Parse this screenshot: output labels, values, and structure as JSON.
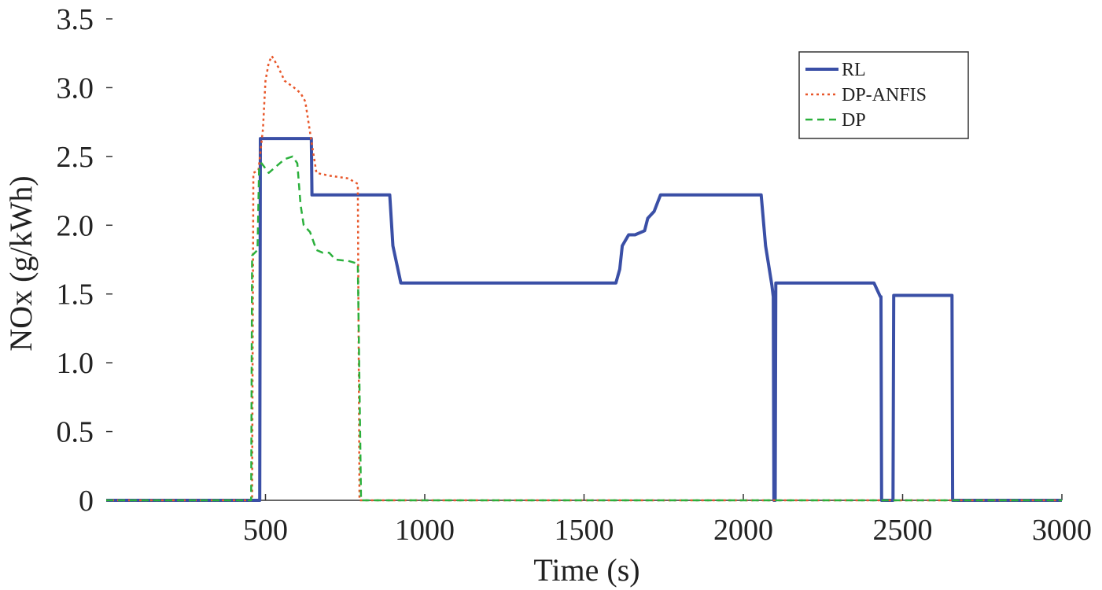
{
  "chart_data": {
    "type": "line",
    "title": "",
    "xlabel": "Time (s)",
    "ylabel": "NOx (g/kWh)",
    "xlim": [
      0,
      3000
    ],
    "ylim": [
      0,
      3.5
    ],
    "x_ticks": [
      500,
      1000,
      1500,
      2000,
      2500,
      3000
    ],
    "x_tick_labels": [
      "500",
      "1000",
      "1500",
      "2000",
      "2500",
      "3000"
    ],
    "y_ticks": [
      0,
      0.5,
      1.0,
      1.5,
      2.0,
      2.5,
      3.0,
      3.5
    ],
    "y_tick_labels": [
      "0",
      "0.5",
      "1.0",
      "1.5",
      "2.0",
      "2.5",
      "3.0",
      "3.5"
    ],
    "grid": false,
    "legend_position": "top-right",
    "series": [
      {
        "name": "RL",
        "color": "#3a4fa6",
        "style": "solid",
        "x": [
          0,
          482,
          484,
          644,
          646,
          890,
          900,
          925,
          1600,
          1612,
          1620,
          1640,
          1660,
          1690,
          1700,
          1720,
          1740,
          2056,
          2070,
          2090,
          2094,
          2096,
          2100,
          2102,
          2410,
          2430,
          2432,
          2434,
          2470,
          2472,
          2655,
          2657,
          3000
        ],
        "y": [
          0,
          0,
          2.63,
          2.63,
          2.22,
          2.22,
          1.85,
          1.58,
          1.58,
          1.68,
          1.85,
          1.93,
          1.93,
          1.96,
          2.05,
          2.1,
          2.22,
          2.22,
          1.85,
          1.56,
          1.48,
          0,
          0,
          1.58,
          1.58,
          1.48,
          1.48,
          0,
          0,
          1.49,
          1.49,
          0,
          0
        ]
      },
      {
        "name": "DP-ANFIS",
        "color": "#e8572a",
        "style": "dotted",
        "x": [
          0,
          458,
          462,
          478,
          492,
          500,
          510,
          520,
          540,
          560,
          590,
          610,
          625,
          645,
          660,
          700,
          760,
          790,
          795,
          3000
        ],
        "y": [
          0,
          0,
          2.38,
          2.4,
          2.7,
          3.05,
          3.18,
          3.23,
          3.15,
          3.05,
          3.0,
          2.96,
          2.9,
          2.6,
          2.38,
          2.36,
          2.34,
          2.3,
          0,
          0
        ]
      },
      {
        "name": "DP",
        "color": "#2bb03c",
        "style": "dashed",
        "x": [
          0,
          455,
          458,
          475,
          480,
          488,
          510,
          540,
          560,
          585,
          600,
          610,
          620,
          640,
          660,
          680,
          700,
          720,
          760,
          790,
          800,
          3000
        ],
        "y": [
          0,
          0,
          1.78,
          1.82,
          2.42,
          2.45,
          2.38,
          2.44,
          2.48,
          2.5,
          2.45,
          2.15,
          2.0,
          1.95,
          1.82,
          1.8,
          1.8,
          1.75,
          1.74,
          1.72,
          0,
          0
        ]
      }
    ]
  }
}
